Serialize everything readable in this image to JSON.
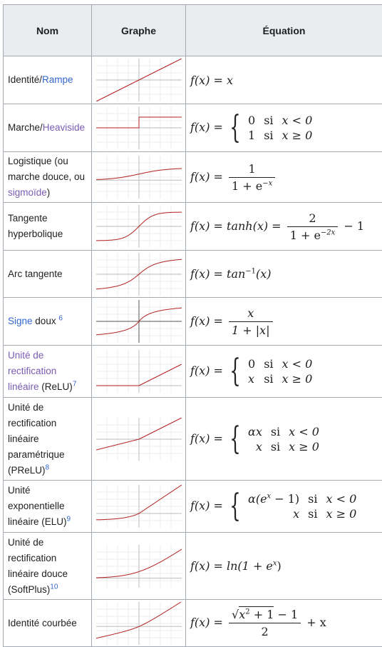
{
  "header": {
    "name": "Nom",
    "graph": "Graphe",
    "equation": "Équation"
  },
  "rows": [
    {
      "name_plain": "Identité/",
      "name_link": "Rampe",
      "eq": {
        "lhs": "f(x) = x"
      }
    },
    {
      "name_plain": "Marche/",
      "name_link": "Heaviside",
      "eq": {
        "lhs": "f(x) =",
        "c1": [
          "0",
          "si",
          "x < 0"
        ],
        "c2": [
          "1",
          "si",
          "x ≥ 0"
        ]
      }
    },
    {
      "name_plain": "Logistique (ou marche douce, ou",
      "name_link": "sigmoïde",
      "name_after": ")",
      "eq": {
        "lhs": "f(x) =",
        "num": "1",
        "den": "1 + e",
        "den_exp": "−x"
      }
    },
    {
      "name_plain": "Tangente hyperbolique",
      "eq": {
        "lhs": "f(x) = tanh(x) =",
        "num": "2",
        "den": "1 + e",
        "den_exp": "−2x",
        "tail": "− 1"
      }
    },
    {
      "name_plain": "Arc tangente",
      "eq": {
        "lhs": "f(x) = tan",
        "sup": "−1",
        "tail": "(x)"
      }
    },
    {
      "name_link": "Signe",
      "name_plain": "doux",
      "ref": "6",
      "eq": {
        "lhs": "f(x) =",
        "num": "x",
        "den": "1 + |x|"
      }
    },
    {
      "name_link": "Unité de rectification linéaire",
      "name_plain": "(ReLU)",
      "ref": "7",
      "eq": {
        "lhs": "f(x) =",
        "c1": [
          "0",
          "si",
          "x < 0"
        ],
        "c2": [
          "x",
          "si",
          "x ≥ 0"
        ]
      }
    },
    {
      "name_plain": "Unité de rectification linéaire paramétrique (PReLU)",
      "ref": "8",
      "eq": {
        "lhs": "f(x) =",
        "c1": [
          "αx",
          "si",
          "x < 0"
        ],
        "c2": [
          "x",
          "si",
          "x ≥ 0"
        ]
      }
    },
    {
      "name_plain": "Unité exponentielle linéaire (ELU)",
      "ref": "9",
      "eq": {
        "lhs": "f(x) =",
        "c1": [
          "α(e",
          "si",
          "x < 0"
        ],
        "c1_exp": "x",
        "c1_tail": " − 1)",
        "c2": [
          "x",
          "si",
          "x ≥ 0"
        ]
      }
    },
    {
      "name_plain": "Unité de rectification linéaire douce (SoftPlus)",
      "ref": "10",
      "eq": {
        "lhs": "f(x) = ln(1 + e",
        "sup": "x",
        "tail": ")"
      }
    },
    {
      "name_plain": "Identité courbée",
      "eq": {
        "lhs": "f(x) =",
        "num_root": "x",
        "num_root_exp": "2",
        "num_root_in": " + 1",
        "num_tail": " − 1",
        "den": "2",
        "tail": "+ x"
      }
    }
  ],
  "colors": {
    "curve": "#b22222",
    "grid": "#dddddd",
    "axis": "#bbbbbb",
    "link": "#3366cc",
    "visited": "#795cb2"
  }
}
